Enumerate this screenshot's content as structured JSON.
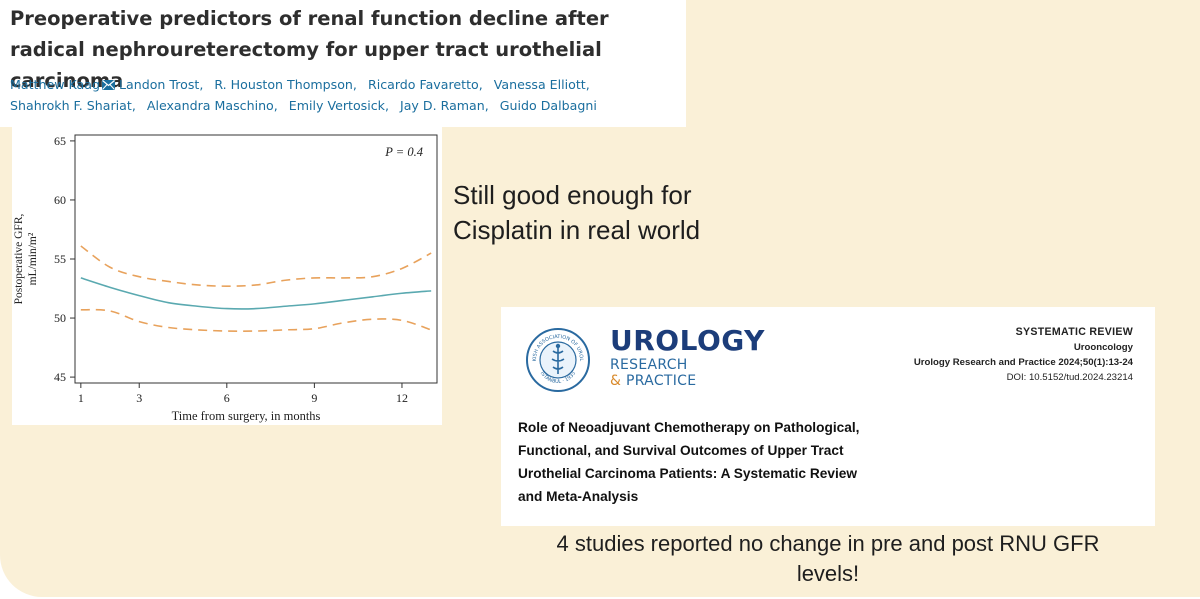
{
  "paper1": {
    "title": "Preoperative predictors of renal function decline after radical nephroureterectomy for upper tract urothelial carcinoma",
    "authors": [
      "Matthew Kaag",
      "Landon Trost",
      "R. Houston Thompson",
      "Ricardo Favaretto",
      "Vanessa Elliott",
      "Shahrokh F. Shariat",
      "Alexandra Maschino",
      "Emily Vertosick",
      "Jay D. Raman",
      "Guido Dalbagni"
    ]
  },
  "chart_data": {
    "type": "line",
    "title": "",
    "xlabel": "Time from surgery, in months",
    "ylabel_line1": "Postoperative GFR,",
    "ylabel_line2": "mL/min/m²",
    "annotation": "P = 0.4",
    "xlim": [
      0.8,
      13.2
    ],
    "ylim": [
      44.5,
      65.5
    ],
    "x_ticks": [
      1,
      3,
      6,
      9,
      12
    ],
    "y_ticks": [
      45,
      50,
      55,
      60,
      65
    ],
    "series": [
      {
        "role": "estimate",
        "color": "#5aa9b0",
        "style": "solid",
        "x": [
          1,
          2,
          3,
          4,
          5,
          6,
          7,
          8,
          9,
          10,
          11,
          12,
          13
        ],
        "y": [
          53.4,
          52.6,
          51.9,
          51.3,
          51.0,
          50.8,
          50.8,
          51.0,
          51.2,
          51.5,
          51.8,
          52.1,
          52.3
        ]
      },
      {
        "role": "upper-ci",
        "color": "#e8a25c",
        "style": "dashed",
        "x": [
          1,
          2,
          3,
          4,
          5,
          6,
          7,
          8,
          9,
          10,
          11,
          12,
          13
        ],
        "y": [
          56.1,
          54.3,
          53.5,
          53.1,
          52.8,
          52.7,
          52.8,
          53.2,
          53.4,
          53.4,
          53.5,
          54.2,
          55.5
        ]
      },
      {
        "role": "lower-ci",
        "color": "#e8a25c",
        "style": "dashed",
        "x": [
          1,
          2,
          3,
          4,
          5,
          6,
          7,
          8,
          9,
          10,
          11,
          12,
          13
        ],
        "y": [
          50.7,
          50.6,
          49.7,
          49.2,
          49.0,
          48.9,
          48.9,
          49.0,
          49.1,
          49.6,
          49.9,
          49.8,
          49.0
        ]
      }
    ]
  },
  "note": {
    "line1": "Still good enough for",
    "line2": "Cisplatin in real world"
  },
  "paper2": {
    "brand_main": "UROLOGY",
    "brand_sub1": "RESEARCH",
    "brand_amp": "&",
    "brand_sub2": "PRACTICE",
    "seal_top": "TURKISH ASSOCIATION OF UROLOGY",
    "seal_bottom": "ISTANBUL · 1933",
    "kind": "SYSTEMATIC REVIEW",
    "section": "Urooncology",
    "journal": "Urology Research and Practice 2024;50(1):13-24",
    "doi": "DOI: 10.5152/tud.2024.23214",
    "title_lines": [
      "Role of Neoadjuvant Chemotherapy on Pathological,",
      "Functional, and Survival Outcomes of Upper Tract",
      "Urothelial Carcinoma Patients: A Systematic Review",
      "and Meta-Analysis"
    ]
  },
  "caption": {
    "line1": "4 studies reported no change in pre and post RNU GFR",
    "line2": "levels!"
  },
  "colors": {
    "slide_background": "#faf0d7",
    "author_link": "#1a6e9e",
    "brand_navy": "#1c3d7a",
    "estimate_line": "#5aa9b0",
    "ci_line": "#e8a25c"
  }
}
